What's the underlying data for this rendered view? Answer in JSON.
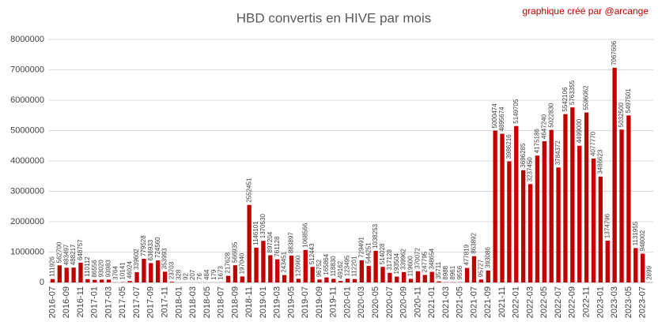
{
  "chart_data": {
    "type": "bar",
    "title": "HBD convertis en HIVE par mois",
    "annotation": "graphique créé par @arcange",
    "categories": [
      "2016-07",
      null,
      "2016-09",
      null,
      "2016-11",
      null,
      "2017-01",
      null,
      "2017-03",
      null,
      "2017-05",
      null,
      "2017-07",
      null,
      "2017-09",
      null,
      "2017-11",
      null,
      "2018-01",
      null,
      "2018-03",
      null,
      "2018-05",
      null,
      "2018-07",
      null,
      "2018-09",
      null,
      "2018-11",
      null,
      "2019-01",
      null,
      "2019-03",
      null,
      "2019-05",
      null,
      "2019-07",
      null,
      "2019-09",
      null,
      "2019-11",
      null,
      "2020-01",
      null,
      "2020-03",
      null,
      "2020-05",
      null,
      "2020-07",
      null,
      "2020-09",
      null,
      "2020-11",
      null,
      "2021-01",
      null,
      "2021-03",
      null,
      "2021-05",
      null,
      "2021-07",
      null,
      "2021-09",
      null,
      "2021-11",
      null,
      "2022-01",
      null,
      "2022-03",
      null,
      "2022-05",
      null,
      "2022-07",
      null,
      "2022-09",
      null,
      "2022-11",
      null,
      "2023-01",
      null,
      "2023-03",
      null,
      "2023-05",
      null,
      "2023-07",
      null
    ],
    "values": [
      111926,
      562700,
      483497,
      488217,
      648757,
      110112,
      86556,
      93020,
      93983,
      3764,
      10141,
      46024,
      339602,
      779528,
      636933,
      724560,
      353993,
      23703,
      328,
      92,
      207,
      76,
      484,
      179,
      1673,
      217628,
      566935,
      197040,
      2552451,
      1146101,
      1370530,
      897204,
      761128,
      243451,
      883897,
      120960,
      1068566,
      512443,
      96752,
      165864,
      118830,
      49162,
      123495,
      112201,
      729491,
      544251,
      1038253,
      514028,
      317128,
      193504,
      339962,
      119600,
      370072,
      247795,
      348654,
      35711,
      8988,
      8961,
      9556,
      477819,
      863892,
      95727,
      393086,
      5000474,
      4895674,
      3986216,
      5149705,
      3696285,
      3237450,
      4175186,
      4647240,
      5022830,
      3784372,
      5542106,
      5763355,
      4499000,
      5596062,
      4077770,
      3486623,
      1374796,
      7067606,
      5032500,
      5497501,
      1131955,
      948002,
      2899
    ],
    "color": "#c00000",
    "ylim": [
      0,
      8000000
    ],
    "yticks": [
      0,
      1000000,
      2000000,
      3000000,
      4000000,
      5000000,
      6000000,
      7000000,
      8000000
    ],
    "grid": true
  }
}
